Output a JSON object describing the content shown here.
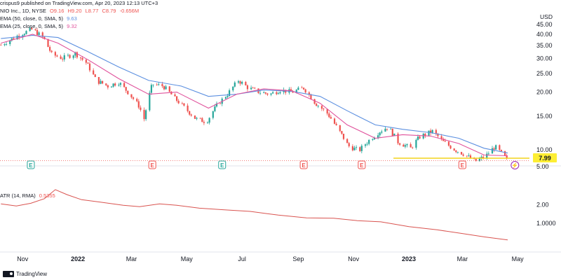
{
  "header": {
    "published": "crispus9 published on TradingView.com, Apr 20, 2023 12:13 UTC+3",
    "symbol": "NIO Inc., 1D, NYSE",
    "open": "O9.16",
    "high": "H9.20",
    "low": "L8.77",
    "close": "C8.79",
    "change": "-0.656M",
    "ema50_label": "EMA (50, close, 0, SMA, 5)",
    "ema50_value": "9.63",
    "ema25_label": "EMA (25, close, 0, SMA, 5)",
    "ema25_value": "9.32",
    "atr_label": "ATR (14, RMA)",
    "atr_value": "0.5355"
  },
  "footer": {
    "brand": "TradingView"
  },
  "colors": {
    "up": "#26a69a",
    "down": "#ef5350",
    "ema50": "#5b8fe0",
    "ema25": "#e0529c",
    "atr": "#d9534f",
    "support": "#f2d31b"
  },
  "chart_data": [
    {
      "type": "candlestick",
      "title": "NIO Inc., 1D, NYSE",
      "currency": "USD",
      "y_scale": "log",
      "y_ticks": [
        10,
        15,
        20,
        25,
        30,
        35,
        40,
        45
      ],
      "ylim": [
        9.6,
        45
      ],
      "x_tick_labels": [
        "Nov",
        "2022",
        "Mar",
        "May",
        "Jul",
        "Sep",
        "Nov",
        "2023",
        "Mar",
        "May"
      ],
      "x_tick_dates": [
        "2021-11-01",
        "2022-01-01",
        "2022-03-01",
        "2022-05-01",
        "2022-07-01",
        "2022-09-01",
        "2022-11-01",
        "2023-01-01",
        "2023-03-01",
        "2023-05-01"
      ],
      "x_range": [
        "2021-10-07",
        "2023-05-14"
      ],
      "closes": [
        {
          "date": "2021-10-08",
          "close": 35.2
        },
        {
          "date": "2021-10-20",
          "close": 37.8
        },
        {
          "date": "2021-11-01",
          "close": 40.5
        },
        {
          "date": "2021-11-12",
          "close": 42.5
        },
        {
          "date": "2021-11-24",
          "close": 38.2
        },
        {
          "date": "2021-12-03",
          "close": 31.5
        },
        {
          "date": "2021-12-15",
          "close": 30.0
        },
        {
          "date": "2021-12-29",
          "close": 31.8
        },
        {
          "date": "2022-01-10",
          "close": 28.5
        },
        {
          "date": "2022-01-21",
          "close": 23.0
        },
        {
          "date": "2022-02-03",
          "close": 21.5
        },
        {
          "date": "2022-02-15",
          "close": 22.5
        },
        {
          "date": "2022-02-25",
          "close": 20.0
        },
        {
          "date": "2022-03-09",
          "close": 17.0
        },
        {
          "date": "2022-03-15",
          "close": 14.5
        },
        {
          "date": "2022-03-24",
          "close": 22.0
        },
        {
          "date": "2022-04-05",
          "close": 21.5
        },
        {
          "date": "2022-04-18",
          "close": 18.5
        },
        {
          "date": "2022-04-29",
          "close": 16.5
        },
        {
          "date": "2022-05-11",
          "close": 14.5
        },
        {
          "date": "2022-05-23",
          "close": 14.0
        },
        {
          "date": "2022-06-03",
          "close": 17.0
        },
        {
          "date": "2022-06-15",
          "close": 19.5
        },
        {
          "date": "2022-06-27",
          "close": 23.0
        },
        {
          "date": "2022-07-08",
          "close": 21.0
        },
        {
          "date": "2022-07-20",
          "close": 20.0
        },
        {
          "date": "2022-08-01",
          "close": 19.5
        },
        {
          "date": "2022-08-12",
          "close": 20.5
        },
        {
          "date": "2022-08-25",
          "close": 20.0
        },
        {
          "date": "2022-09-07",
          "close": 21.0
        },
        {
          "date": "2022-09-20",
          "close": 17.5
        },
        {
          "date": "2022-10-03",
          "close": 15.5
        },
        {
          "date": "2022-10-14",
          "close": 13.0
        },
        {
          "date": "2022-10-26",
          "close": 10.5
        },
        {
          "date": "2022-11-07",
          "close": 9.9
        },
        {
          "date": "2022-11-18",
          "close": 11.2
        },
        {
          "date": "2022-11-30",
          "close": 12.5
        },
        {
          "date": "2022-12-09",
          "close": 13.2
        },
        {
          "date": "2022-12-20",
          "close": 11.0
        },
        {
          "date": "2023-01-03",
          "close": 10.2
        },
        {
          "date": "2023-01-13",
          "close": 11.7
        },
        {
          "date": "2023-01-27",
          "close": 12.5
        },
        {
          "date": "2023-02-08",
          "close": 11.0
        },
        {
          "date": "2023-02-21",
          "close": 10.0
        },
        {
          "date": "2023-03-03",
          "close": 9.5
        },
        {
          "date": "2023-03-15",
          "close": 8.7
        },
        {
          "date": "2023-03-27",
          "close": 9.3
        },
        {
          "date": "2023-04-06",
          "close": 10.4
        },
        {
          "date": "2023-04-14",
          "close": 9.5
        },
        {
          "date": "2023-04-20",
          "close": 8.79
        }
      ],
      "ema50_series": [
        {
          "date": "2021-10-08",
          "value": 38.0
        },
        {
          "date": "2021-11-12",
          "value": 39.5
        },
        {
          "date": "2021-12-10",
          "value": 38.5
        },
        {
          "date": "2022-01-12",
          "value": 32.5
        },
        {
          "date": "2022-02-15",
          "value": 27.0
        },
        {
          "date": "2022-03-20",
          "value": 23.0
        },
        {
          "date": "2022-04-25",
          "value": 21.5
        },
        {
          "date": "2022-05-25",
          "value": 19.0
        },
        {
          "date": "2022-06-25",
          "value": 19.5
        },
        {
          "date": "2022-07-25",
          "value": 20.5
        },
        {
          "date": "2022-08-25",
          "value": 20.2
        },
        {
          "date": "2022-09-25",
          "value": 19.0
        },
        {
          "date": "2022-10-25",
          "value": 16.0
        },
        {
          "date": "2022-11-25",
          "value": 13.5
        },
        {
          "date": "2022-12-25",
          "value": 12.8
        },
        {
          "date": "2023-01-25",
          "value": 12.3
        },
        {
          "date": "2023-02-25",
          "value": 11.5
        },
        {
          "date": "2023-03-25",
          "value": 10.2
        },
        {
          "date": "2023-04-20",
          "value": 9.63
        }
      ],
      "ema25_series": [
        {
          "date": "2021-10-08",
          "value": 36.0
        },
        {
          "date": "2021-11-12",
          "value": 40.0
        },
        {
          "date": "2021-12-10",
          "value": 36.0
        },
        {
          "date": "2022-01-12",
          "value": 29.5
        },
        {
          "date": "2022-02-15",
          "value": 23.5
        },
        {
          "date": "2022-03-20",
          "value": 19.5
        },
        {
          "date": "2022-04-20",
          "value": 20.0
        },
        {
          "date": "2022-05-25",
          "value": 16.5
        },
        {
          "date": "2022-06-25",
          "value": 19.5
        },
        {
          "date": "2022-07-25",
          "value": 20.8
        },
        {
          "date": "2022-08-25",
          "value": 20.3
        },
        {
          "date": "2022-09-25",
          "value": 17.5
        },
        {
          "date": "2022-10-25",
          "value": 13.5
        },
        {
          "date": "2022-11-25",
          "value": 11.5
        },
        {
          "date": "2022-12-25",
          "value": 12.0
        },
        {
          "date": "2023-01-25",
          "value": 11.8
        },
        {
          "date": "2023-02-25",
          "value": 10.8
        },
        {
          "date": "2023-03-25",
          "value": 9.4
        },
        {
          "date": "2023-04-20",
          "value": 9.32
        }
      ],
      "support_line": {
        "value": 7.99,
        "label": "7.99",
        "start": "2022-12-15",
        "end": "2023-05-14"
      },
      "last_price_line": 8.79,
      "earnings_markers": [
        {
          "date": "2021-11-10",
          "label": "E",
          "color": "#26a69a"
        },
        {
          "date": "2022-03-24",
          "label": "E",
          "color": "#ef5350"
        },
        {
          "date": "2022-06-09",
          "label": "E",
          "color": "#26a69a"
        },
        {
          "date": "2022-09-07",
          "label": "E",
          "color": "#ef5350"
        },
        {
          "date": "2022-11-10",
          "label": "E",
          "color": "#ef5350"
        },
        {
          "date": "2023-03-01",
          "label": "E",
          "color": "#ef5350"
        }
      ],
      "flash_marker": {
        "date": "2023-04-28",
        "label": "⚡",
        "color": "#9c27b0"
      }
    },
    {
      "type": "line",
      "title": "ATR (14, RMA)",
      "y_scale": "log",
      "y_ticks": [
        1.0,
        2.0
      ],
      "y_tick_labels": [
        "1.0000",
        "2.00"
      ],
      "extra_tick": {
        "value": 5.0,
        "label": "5.00"
      },
      "ylim": [
        0.42,
        5.3
      ],
      "series": [
        {
          "date": "2021-10-08",
          "value": 2.05
        },
        {
          "date": "2021-10-25",
          "value": 1.9
        },
        {
          "date": "2021-11-10",
          "value": 2.1
        },
        {
          "date": "2021-11-25",
          "value": 2.5
        },
        {
          "date": "2021-12-07",
          "value": 3.5
        },
        {
          "date": "2021-12-20",
          "value": 2.9
        },
        {
          "date": "2022-01-05",
          "value": 2.4
        },
        {
          "date": "2022-01-25",
          "value": 2.2
        },
        {
          "date": "2022-02-20",
          "value": 1.95
        },
        {
          "date": "2022-03-10",
          "value": 1.85
        },
        {
          "date": "2022-04-01",
          "value": 2.05
        },
        {
          "date": "2022-04-20",
          "value": 1.95
        },
        {
          "date": "2022-05-15",
          "value": 1.75
        },
        {
          "date": "2022-06-10",
          "value": 1.65
        },
        {
          "date": "2022-07-10",
          "value": 1.55
        },
        {
          "date": "2022-08-10",
          "value": 1.35
        },
        {
          "date": "2022-09-10",
          "value": 1.22
        },
        {
          "date": "2022-10-10",
          "value": 1.2
        },
        {
          "date": "2022-11-05",
          "value": 1.1
        },
        {
          "date": "2022-12-01",
          "value": 1.05
        },
        {
          "date": "2023-01-01",
          "value": 0.88
        },
        {
          "date": "2023-02-01",
          "value": 0.78
        },
        {
          "date": "2023-03-01",
          "value": 0.68
        },
        {
          "date": "2023-03-25",
          "value": 0.6
        },
        {
          "date": "2023-04-20",
          "value": 0.5355
        }
      ]
    }
  ]
}
